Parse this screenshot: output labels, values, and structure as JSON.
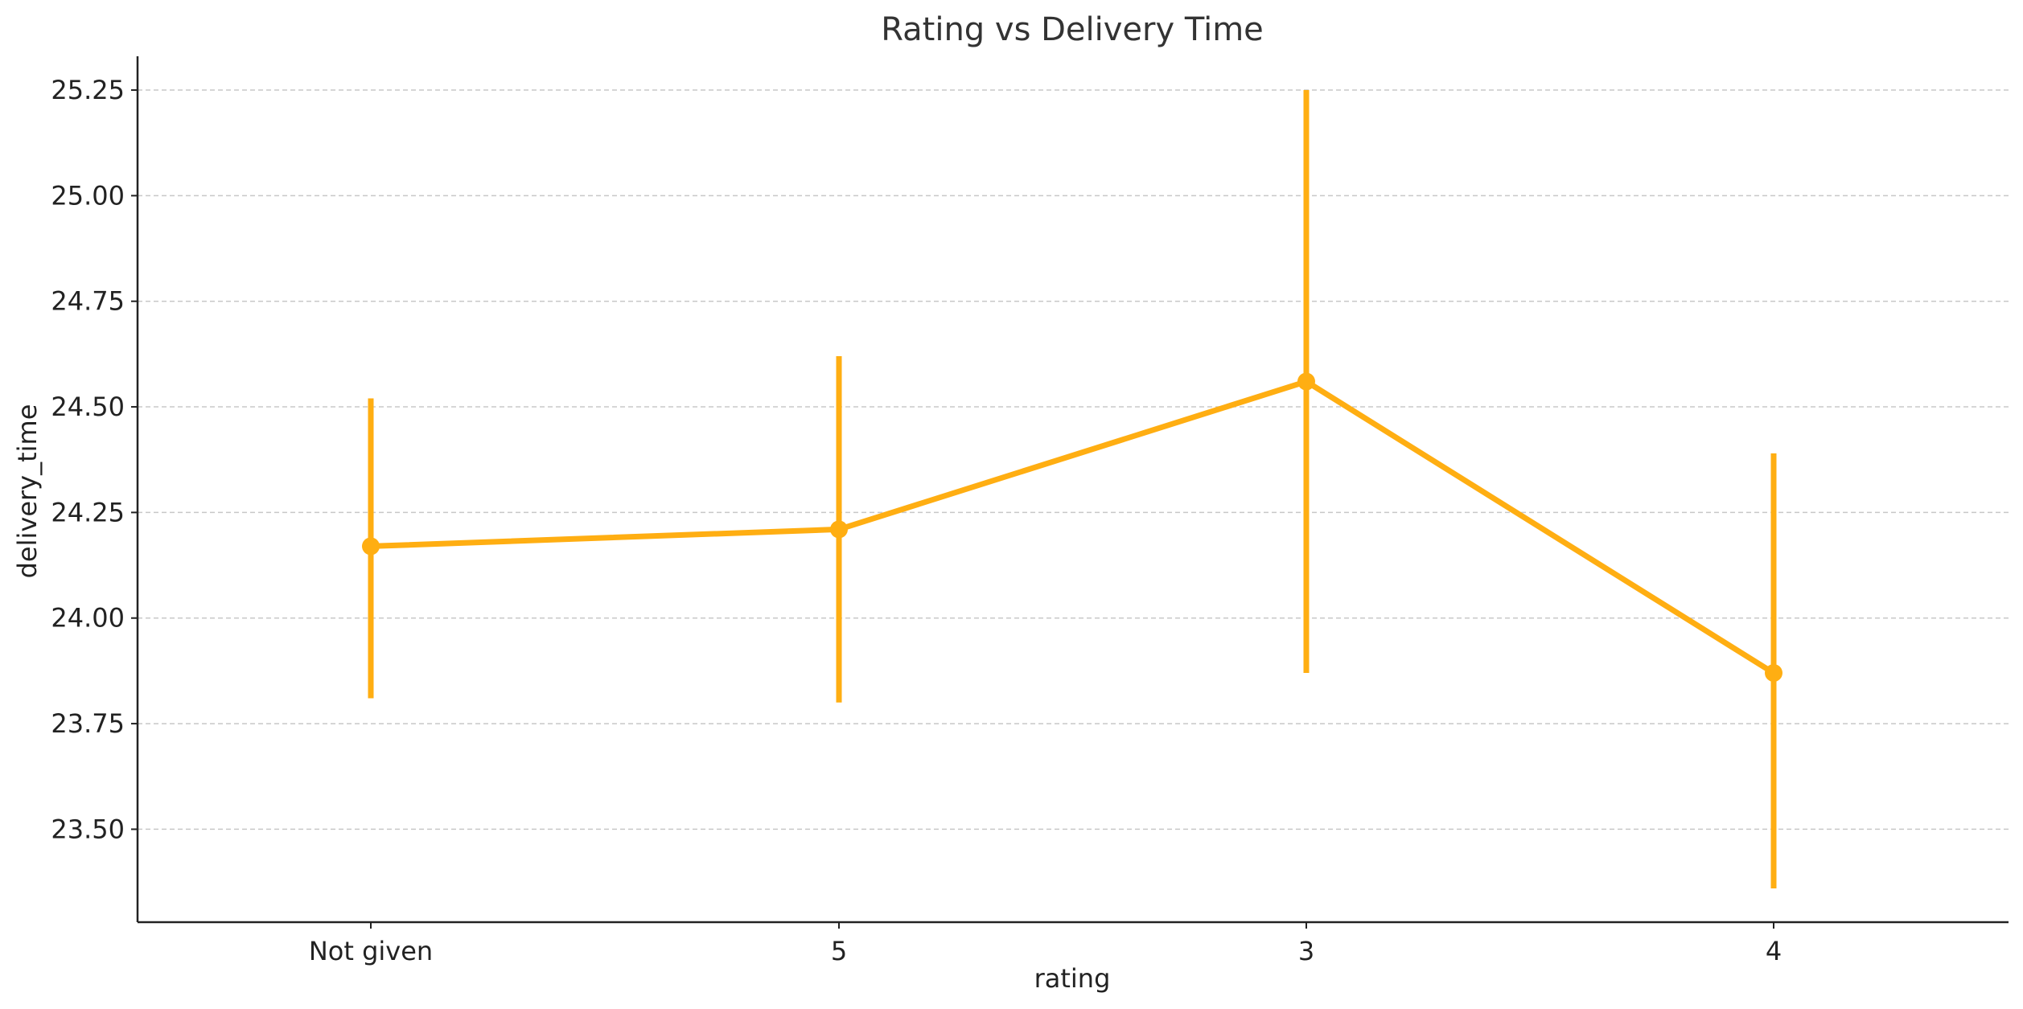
{
  "chart_data": {
    "type": "line",
    "title": "Rating vs Delivery Time",
    "xlabel": "rating",
    "ylabel": "delivery_time",
    "categories": [
      "Not given",
      "5",
      "3",
      "4"
    ],
    "series": [
      {
        "values": [
          24.17,
          24.21,
          24.56,
          23.87
        ],
        "error_low": [
          23.81,
          23.8,
          23.87,
          23.36
        ],
        "error_high": [
          24.52,
          24.62,
          25.25,
          24.39
        ]
      }
    ],
    "ylim": [
      23.28,
      25.33
    ],
    "yticks": [
      23.5,
      23.75,
      24.0,
      24.25,
      24.5,
      24.75,
      25.0,
      25.25
    ],
    "ytick_labels": [
      "23.50",
      "23.75",
      "24.00",
      "24.25",
      "24.50",
      "24.75",
      "25.00",
      "25.25"
    ],
    "grid": "horizontal dashed",
    "color": "#ffae12"
  }
}
